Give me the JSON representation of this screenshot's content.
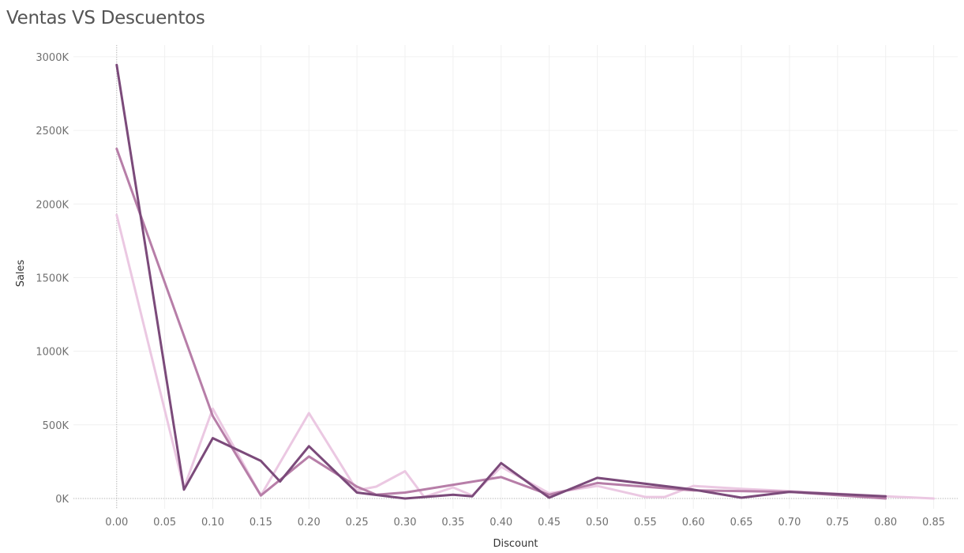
{
  "chart_data": {
    "type": "line",
    "title": "Ventas VS Descuentos",
    "xlabel": "Discount",
    "ylabel": "Sales",
    "xlim": [
      -0.045,
      0.875
    ],
    "ylim": [
      -70,
      3080
    ],
    "x_ticks": [
      "0.00",
      "0.05",
      "0.10",
      "0.15",
      "0.20",
      "0.25",
      "0.30",
      "0.35",
      "0.40",
      "0.45",
      "0.50",
      "0.55",
      "0.60",
      "0.65",
      "0.70",
      "0.75",
      "0.80",
      "0.85"
    ],
    "x_tick_values": [
      0,
      0.05,
      0.1,
      0.15,
      0.2,
      0.25,
      0.3,
      0.35,
      0.4,
      0.45,
      0.5,
      0.55,
      0.6,
      0.65,
      0.7,
      0.75,
      0.8,
      0.85
    ],
    "y_ticks": [
      "0K",
      "500K",
      "1000K",
      "1500K",
      "2000K",
      "2500K",
      "3000K"
    ],
    "y_tick_values": [
      0,
      500,
      1000,
      1500,
      2000,
      2500,
      3000
    ],
    "y_unit": "K",
    "grid": true,
    "series": [
      {
        "color": "#7b4a7a",
        "x": [
          0.0,
          0.07,
          0.1,
          0.15,
          0.17,
          0.2,
          0.25,
          0.3,
          0.32,
          0.35,
          0.37,
          0.4,
          0.45,
          0.5,
          0.6,
          0.65,
          0.7,
          0.8
        ],
        "y": [
          2945,
          60,
          410,
          255,
          115,
          355,
          40,
          0,
          10,
          25,
          15,
          240,
          5,
          140,
          60,
          5,
          45,
          15
        ]
      },
      {
        "color": "#b77ea8",
        "x": [
          0.0,
          0.1,
          0.15,
          0.2,
          0.25,
          0.27,
          0.3,
          0.4,
          0.45,
          0.5,
          0.6,
          0.7,
          0.8
        ],
        "y": [
          2375,
          560,
          20,
          285,
          80,
          25,
          40,
          145,
          25,
          105,
          55,
          45,
          0
        ]
      },
      {
        "color": "#ebc8e2",
        "x": [
          0.0,
          0.07,
          0.1,
          0.15,
          0.2,
          0.25,
          0.27,
          0.3,
          0.32,
          0.35,
          0.37,
          0.4,
          0.45,
          0.5,
          0.55,
          0.57,
          0.6,
          0.65,
          0.7,
          0.8,
          0.85
        ],
        "y": [
          1925,
          70,
          610,
          20,
          580,
          55,
          80,
          185,
          10,
          75,
          20,
          215,
          35,
          85,
          10,
          10,
          85,
          65,
          50,
          15,
          0
        ]
      }
    ]
  }
}
